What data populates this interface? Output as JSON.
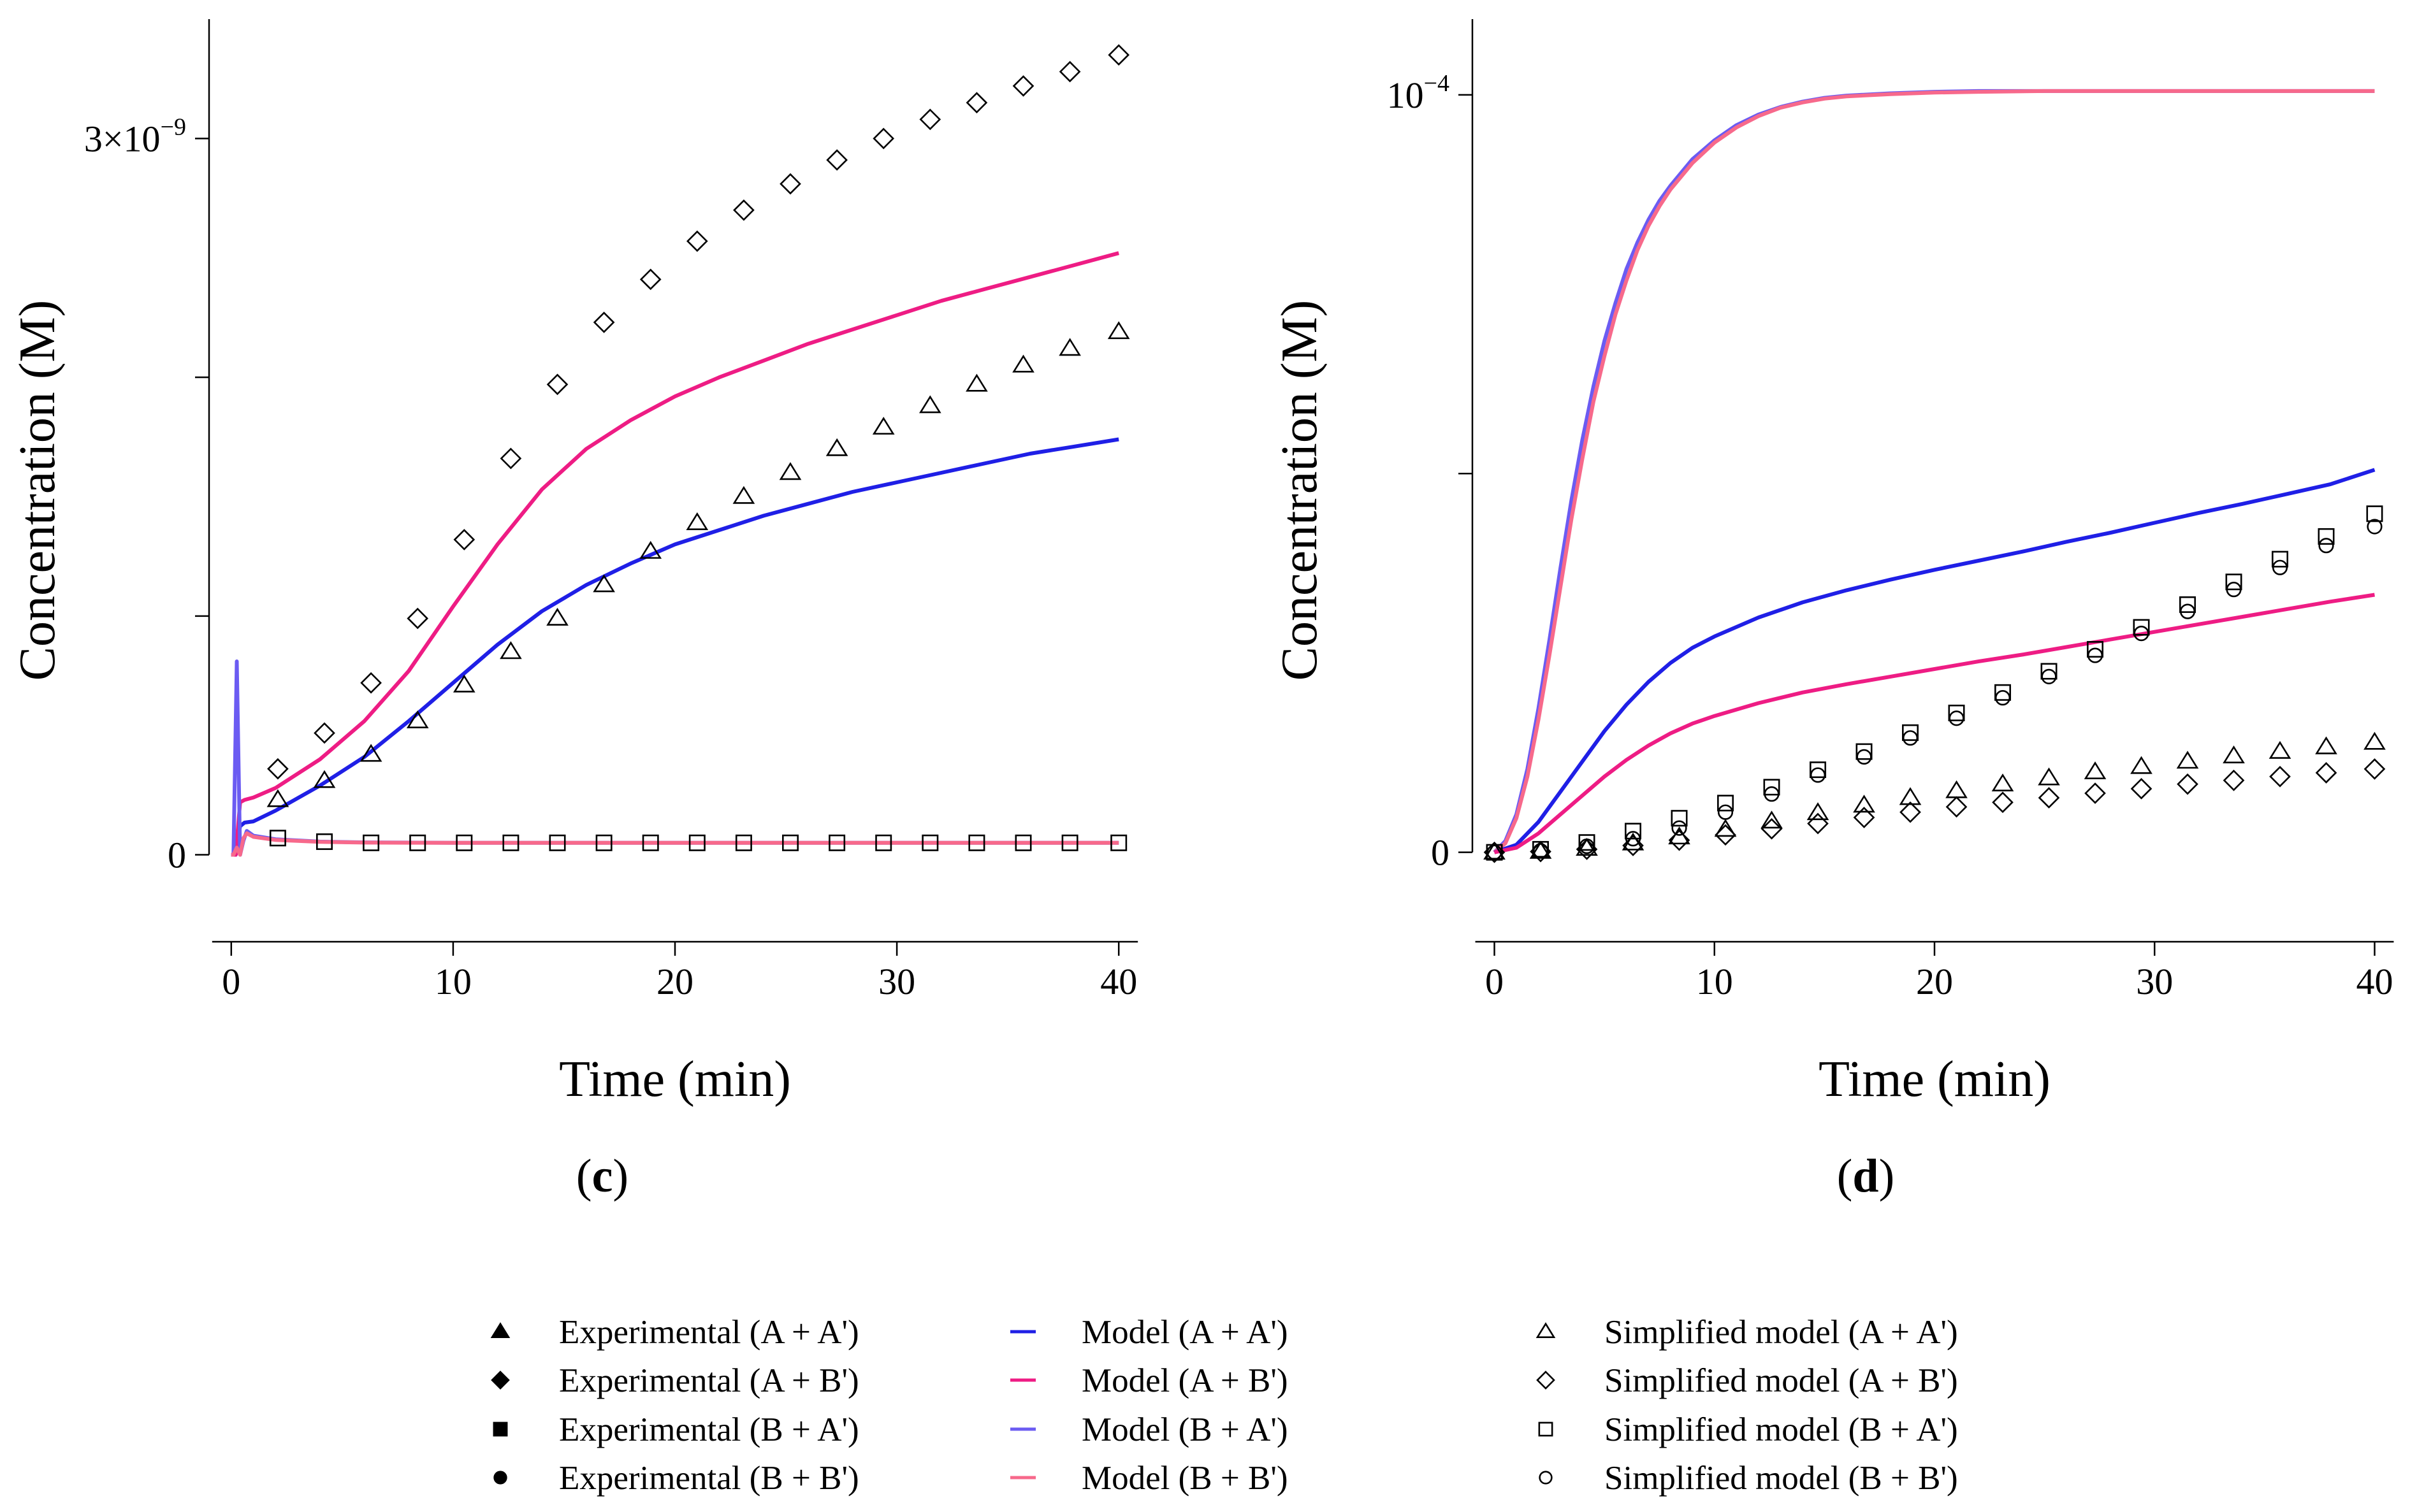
{
  "chart_data": [
    {
      "panel": "(c)",
      "type": "line",
      "xlabel": "Time (min)",
      "ylabel": "Concentration (M)",
      "xlim": [
        -1,
        41
      ],
      "ylim": [
        -1.8e-10,
        3.5e-09
      ],
      "x_ticks": [
        0,
        10,
        20,
        30,
        40
      ],
      "y_ticks": [
        0,
        1e-09,
        2e-09,
        3e-09
      ],
      "y_tick_labels": [
        {
          "base": "0",
          "exp": ""
        },
        {
          "base": "",
          "exp": ""
        },
        {
          "base": "",
          "exp": ""
        },
        {
          "base": "3×10",
          "exp": "−9"
        }
      ],
      "model_series": [
        {
          "name": "Model (A + A')",
          "color": "#1f1fe6",
          "x": [
            0,
            0.2,
            0.4,
            0.6,
            1,
            2,
            4,
            6,
            8,
            10,
            12,
            14,
            16,
            18,
            20,
            22,
            24,
            26,
            28,
            30,
            32,
            34,
            36,
            38,
            40
          ],
          "y": [
            0,
            0,
            1.2e-10,
            1.35e-10,
            1.4e-10,
            1.85e-10,
            2.9e-10,
            4.1e-10,
            5.6e-10,
            7.2e-10,
            8.8e-10,
            1.02e-09,
            1.13e-09,
            1.22e-09,
            1.3e-09,
            1.36e-09,
            1.42e-09,
            1.47e-09,
            1.52e-09,
            1.56e-09,
            1.6e-09,
            1.64e-09,
            1.68e-09,
            1.71e-09,
            1.74e-09
          ]
        },
        {
          "name": "Model (A + B')",
          "color": "#ee1c84",
          "x": [
            0,
            0.2,
            0.4,
            0.6,
            1,
            2,
            4,
            6,
            8,
            10,
            12,
            14,
            16,
            18,
            20,
            22,
            24,
            26,
            28,
            30,
            32,
            34,
            36,
            38,
            40
          ],
          "y": [
            0,
            0,
            2.2e-10,
            2.3e-10,
            2.4e-10,
            2.8e-10,
            4e-10,
            5.6e-10,
            7.7e-10,
            1.04e-09,
            1.3e-09,
            1.53e-09,
            1.7e-09,
            1.82e-09,
            1.92e-09,
            2e-09,
            2.07e-09,
            2.14e-09,
            2.2e-09,
            2.26e-09,
            2.32e-09,
            2.37e-09,
            2.42e-09,
            2.47e-09,
            2.52e-09
          ]
        },
        {
          "name": "Model (B + A')",
          "color": "#6b5bf2",
          "x": [
            0,
            0.1,
            0.25,
            0.4,
            0.55,
            0.7,
            1,
            2,
            4,
            6,
            10,
            20,
            30,
            40
          ],
          "y": [
            0,
            0,
            8.1e-10,
            0,
            6e-11,
            1e-10,
            8e-11,
            6.5e-11,
            5.5e-11,
            5.2e-11,
            5e-11,
            5e-11,
            5e-11,
            5e-11
          ]
        },
        {
          "name": "Model (B + B')",
          "color": "#f7698b",
          "x": [
            0,
            0.1,
            0.25,
            0.4,
            0.55,
            0.7,
            1,
            2,
            4,
            6,
            10,
            20,
            30,
            40
          ],
          "y": [
            0,
            0,
            3e-11,
            0,
            7e-11,
            9e-11,
            7.5e-11,
            6.2e-11,
            5.4e-11,
            5.1e-11,
            5e-11,
            5e-11,
            5e-11,
            5e-11
          ]
        }
      ],
      "marker_series": [
        {
          "name": "Simplified model (A + A')",
          "marker": "triangle",
          "x": [
            2.1,
            4.2,
            6.3,
            8.4,
            10.5,
            12.6,
            14.7,
            16.8,
            18.9,
            21,
            23.1,
            25.2,
            27.3,
            29.4,
            31.5,
            33.6,
            35.7,
            37.8,
            40
          ],
          "y": [
            2.3e-10,
            3.1e-10,
            4.2e-10,
            5.6e-10,
            7.1e-10,
            8.5e-10,
            9.9e-10,
            1.13e-09,
            1.27e-09,
            1.39e-09,
            1.5e-09,
            1.6e-09,
            1.7e-09,
            1.79e-09,
            1.88e-09,
            1.97e-09,
            2.05e-09,
            2.12e-09,
            2.19e-09
          ]
        },
        {
          "name": "Simplified model (A + B')",
          "marker": "diamond",
          "x": [
            2.1,
            4.2,
            6.3,
            8.4,
            10.5,
            12.6,
            14.7,
            16.8,
            18.9,
            21,
            23.1,
            25.2,
            27.3,
            29.4,
            31.5,
            33.6,
            35.7,
            37.8,
            40
          ],
          "y": [
            3.6e-10,
            5.1e-10,
            7.2e-10,
            9.9e-10,
            1.32e-09,
            1.66e-09,
            1.97e-09,
            2.23e-09,
            2.41e-09,
            2.57e-09,
            2.7e-09,
            2.81e-09,
            2.91e-09,
            3e-09,
            3.08e-09,
            3.15e-09,
            3.22e-09,
            3.28e-09,
            3.35e-09
          ]
        },
        {
          "name": "Simplified model (B + A')",
          "marker": "square",
          "x": [
            2.1,
            4.2,
            6.3,
            8.4,
            10.5,
            12.6,
            14.7,
            16.8,
            18.9,
            21,
            23.1,
            25.2,
            27.3,
            29.4,
            31.5,
            33.6,
            35.7,
            37.8,
            40
          ],
          "y": [
            7e-11,
            5.5e-11,
            5e-11,
            5e-11,
            5e-11,
            5e-11,
            5e-11,
            5e-11,
            5e-11,
            5e-11,
            5e-11,
            5e-11,
            5e-11,
            5e-11,
            5e-11,
            5e-11,
            5e-11,
            5e-11,
            5e-11
          ]
        }
      ]
    },
    {
      "panel": "(d)",
      "type": "line",
      "xlabel": "Time (min)",
      "ylabel": "Concentration (M)",
      "xlim": [
        -1,
        41
      ],
      "ylim": [
        -6e-06,
        0.00011
      ],
      "x_ticks": [
        0,
        10,
        20,
        30,
        40
      ],
      "y_ticks": [
        0,
        5e-05,
        0.0001
      ],
      "y_tick_labels": [
        {
          "base": "0",
          "exp": ""
        },
        {
          "base": "",
          "exp": ""
        },
        {
          "base": "10",
          "exp": "−4"
        }
      ],
      "model_series": [
        {
          "name": "Model (B + A')",
          "color": "#6b5bf2",
          "x": [
            0,
            0.5,
            1,
            1.5,
            2,
            2.5,
            3,
            3.5,
            4,
            4.5,
            5,
            5.5,
            6,
            6.5,
            7,
            7.5,
            8,
            9,
            10,
            11,
            12,
            13,
            14,
            15,
            16,
            18,
            20,
            22,
            25,
            30,
            35,
            40
          ],
          "y": [
            0,
            1.5e-06,
            5e-06,
            1.1e-05,
            1.9e-05,
            2.8e-05,
            3.75e-05,
            4.65e-05,
            5.45e-05,
            6.15e-05,
            6.75e-05,
            7.25e-05,
            7.7e-05,
            8.05e-05,
            8.35e-05,
            8.6e-05,
            8.8e-05,
            9.15e-05,
            9.4e-05,
            9.6e-05,
            9.74e-05,
            9.84e-05,
            9.91e-05,
            9.96e-05,
            9.99e-05,
            0.0001002,
            0.0001004,
            0.0001005,
            0.0001005,
            0.0001005,
            0.0001005,
            0.0001005
          ]
        },
        {
          "name": "Model (B + B')",
          "color": "#f7698b",
          "x": [
            0,
            0.5,
            1,
            1.5,
            2,
            2.5,
            3,
            3.5,
            4,
            4.5,
            5,
            5.5,
            6,
            6.5,
            7,
            7.5,
            8,
            9,
            10,
            11,
            12,
            13,
            14,
            15,
            16,
            18,
            20,
            22,
            25,
            30,
            35,
            40
          ],
          "y": [
            0,
            1.2e-06,
            4.5e-06,
            1e-05,
            1.75e-05,
            2.6e-05,
            3.5e-05,
            4.4e-05,
            5.2e-05,
            5.95e-05,
            6.55e-05,
            7.1e-05,
            7.55e-05,
            7.95e-05,
            8.27e-05,
            8.53e-05,
            8.75e-05,
            9.1e-05,
            9.37e-05,
            9.57e-05,
            9.72e-05,
            9.83e-05,
            9.9e-05,
            9.95e-05,
            9.98e-05,
            0.0001001,
            0.0001003,
            0.0001004,
            0.0001005,
            0.0001005,
            0.0001005,
            0.0001005
          ]
        },
        {
          "name": "Model (A + A')",
          "color": "#1f1fe6",
          "x": [
            0,
            1,
            2,
            3,
            4,
            5,
            6,
            7,
            8,
            9,
            10,
            12,
            14,
            16,
            18,
            20,
            22,
            24,
            26,
            28,
            30,
            32,
            34,
            36,
            38,
            40
          ],
          "y": [
            0,
            1e-06,
            4e-06,
            8e-06,
            1.2e-05,
            1.6e-05,
            1.95e-05,
            2.25e-05,
            2.5e-05,
            2.7e-05,
            2.85e-05,
            3.1e-05,
            3.3e-05,
            3.46e-05,
            3.6e-05,
            3.73e-05,
            3.85e-05,
            3.97e-05,
            4.1e-05,
            4.22e-05,
            4.35e-05,
            4.48e-05,
            4.6e-05,
            4.73e-05,
            4.86e-05,
            5.05e-05
          ]
        },
        {
          "name": "Model (A + B')",
          "color": "#ee1c84",
          "x": [
            0,
            1,
            2,
            3,
            4,
            5,
            6,
            7,
            8,
            9,
            10,
            12,
            14,
            16,
            18,
            20,
            22,
            24,
            26,
            28,
            30,
            32,
            34,
            36,
            38,
            40
          ],
          "y": [
            0,
            6e-07,
            2.5e-06,
            5e-06,
            7.5e-06,
            1e-05,
            1.22e-05,
            1.41e-05,
            1.57e-05,
            1.7e-05,
            1.8e-05,
            1.97e-05,
            2.11e-05,
            2.22e-05,
            2.32e-05,
            2.42e-05,
            2.52e-05,
            2.61e-05,
            2.71e-05,
            2.81e-05,
            2.91e-05,
            3.01e-05,
            3.11e-05,
            3.21e-05,
            3.31e-05,
            3.4e-05
          ]
        }
      ],
      "marker_series": [
        {
          "name": "Simplified model (A + A')",
          "marker": "triangle",
          "x": [
            0,
            2.1,
            4.2,
            6.3,
            8.4,
            10.5,
            12.6,
            14.7,
            16.8,
            18.9,
            21,
            23.1,
            25.2,
            27.3,
            29.4,
            31.5,
            33.6,
            35.7,
            37.8,
            40
          ],
          "y": [
            0,
            1e-07,
            5e-07,
            1.2e-06,
            2e-06,
            3e-06,
            4.1e-06,
            5.2e-06,
            6.2e-06,
            7.2e-06,
            8.1e-06,
            9e-06,
            9.8e-06,
            1.06e-05,
            1.13e-05,
            1.2e-05,
            1.27e-05,
            1.33e-05,
            1.39e-05,
            1.45e-05
          ]
        },
        {
          "name": "Simplified model (A + B')",
          "marker": "diamond",
          "x": [
            0,
            2.1,
            4.2,
            6.3,
            8.4,
            10.5,
            12.6,
            14.7,
            16.8,
            18.9,
            21,
            23.1,
            25.2,
            27.3,
            29.4,
            31.5,
            33.6,
            35.7,
            37.8,
            40
          ],
          "y": [
            0,
            1e-07,
            4e-07,
            9e-07,
            1.6e-06,
            2.3e-06,
            3.1e-06,
            3.8e-06,
            4.6e-06,
            5.3e-06,
            6e-06,
            6.6e-06,
            7.2e-06,
            7.8e-06,
            8.4e-06,
            9e-06,
            9.5e-06,
            1e-05,
            1.05e-05,
            1.1e-05
          ]
        },
        {
          "name": "Simplified model (B + A')",
          "marker": "square",
          "x": [
            0,
            2.1,
            4.2,
            6.3,
            8.4,
            10.5,
            12.6,
            14.7,
            16.8,
            18.9,
            21,
            23.1,
            25.2,
            27.3,
            29.4,
            31.5,
            33.6,
            35.7,
            37.8,
            40
          ],
          "y": [
            0,
            4e-07,
            1.3e-06,
            2.8e-06,
            4.5e-06,
            6.5e-06,
            8.6e-06,
            1.09e-05,
            1.33e-05,
            1.58e-05,
            1.84e-05,
            2.11e-05,
            2.39e-05,
            2.68e-05,
            2.97e-05,
            3.27e-05,
            3.57e-05,
            3.87e-05,
            4.17e-05,
            4.47e-05
          ]
        },
        {
          "name": "Simplified model (B + B')",
          "marker": "circle",
          "x": [
            0,
            2.1,
            4.2,
            6.3,
            8.4,
            10.5,
            12.6,
            14.7,
            16.8,
            18.9,
            21,
            23.1,
            25.2,
            27.3,
            29.4,
            31.5,
            33.6,
            35.7,
            37.8,
            40
          ],
          "y": [
            0,
            2e-07,
            8e-07,
            1.8e-06,
            3.2e-06,
            5.3e-06,
            7.7e-06,
            1.02e-05,
            1.26e-05,
            1.51e-05,
            1.77e-05,
            2.04e-05,
            2.32e-05,
            2.6e-05,
            2.89e-05,
            3.18e-05,
            3.47e-05,
            3.76e-05,
            4.05e-05,
            4.3e-05
          ]
        }
      ]
    }
  ],
  "legend": {
    "columns": [
      [
        {
          "label": "Experimental (A + A')",
          "marker": "filled-triangle"
        },
        {
          "label": "Experimental (A + B')",
          "marker": "filled-diamond"
        },
        {
          "label": "Experimental (B + A')",
          "marker": "filled-square"
        },
        {
          "label": "Experimental (B + B')",
          "marker": "filled-circle"
        }
      ],
      [
        {
          "label": "Model (A + A')",
          "marker": "line",
          "color": "#1f1fe6"
        },
        {
          "label": "Model (A + B')",
          "marker": "line",
          "color": "#ee1c84"
        },
        {
          "label": "Model (B + A')",
          "marker": "line",
          "color": "#6b5bf2"
        },
        {
          "label": "Model (B + B')",
          "marker": "line",
          "color": "#f7698b"
        }
      ],
      [
        {
          "label": "Simplified model (A + A')",
          "marker": "triangle"
        },
        {
          "label": "Simplified model (A + B')",
          "marker": "diamond"
        },
        {
          "label": "Simplified model (B + A')",
          "marker": "square"
        },
        {
          "label": "Simplified model (B + B')",
          "marker": "circle"
        }
      ]
    ]
  }
}
